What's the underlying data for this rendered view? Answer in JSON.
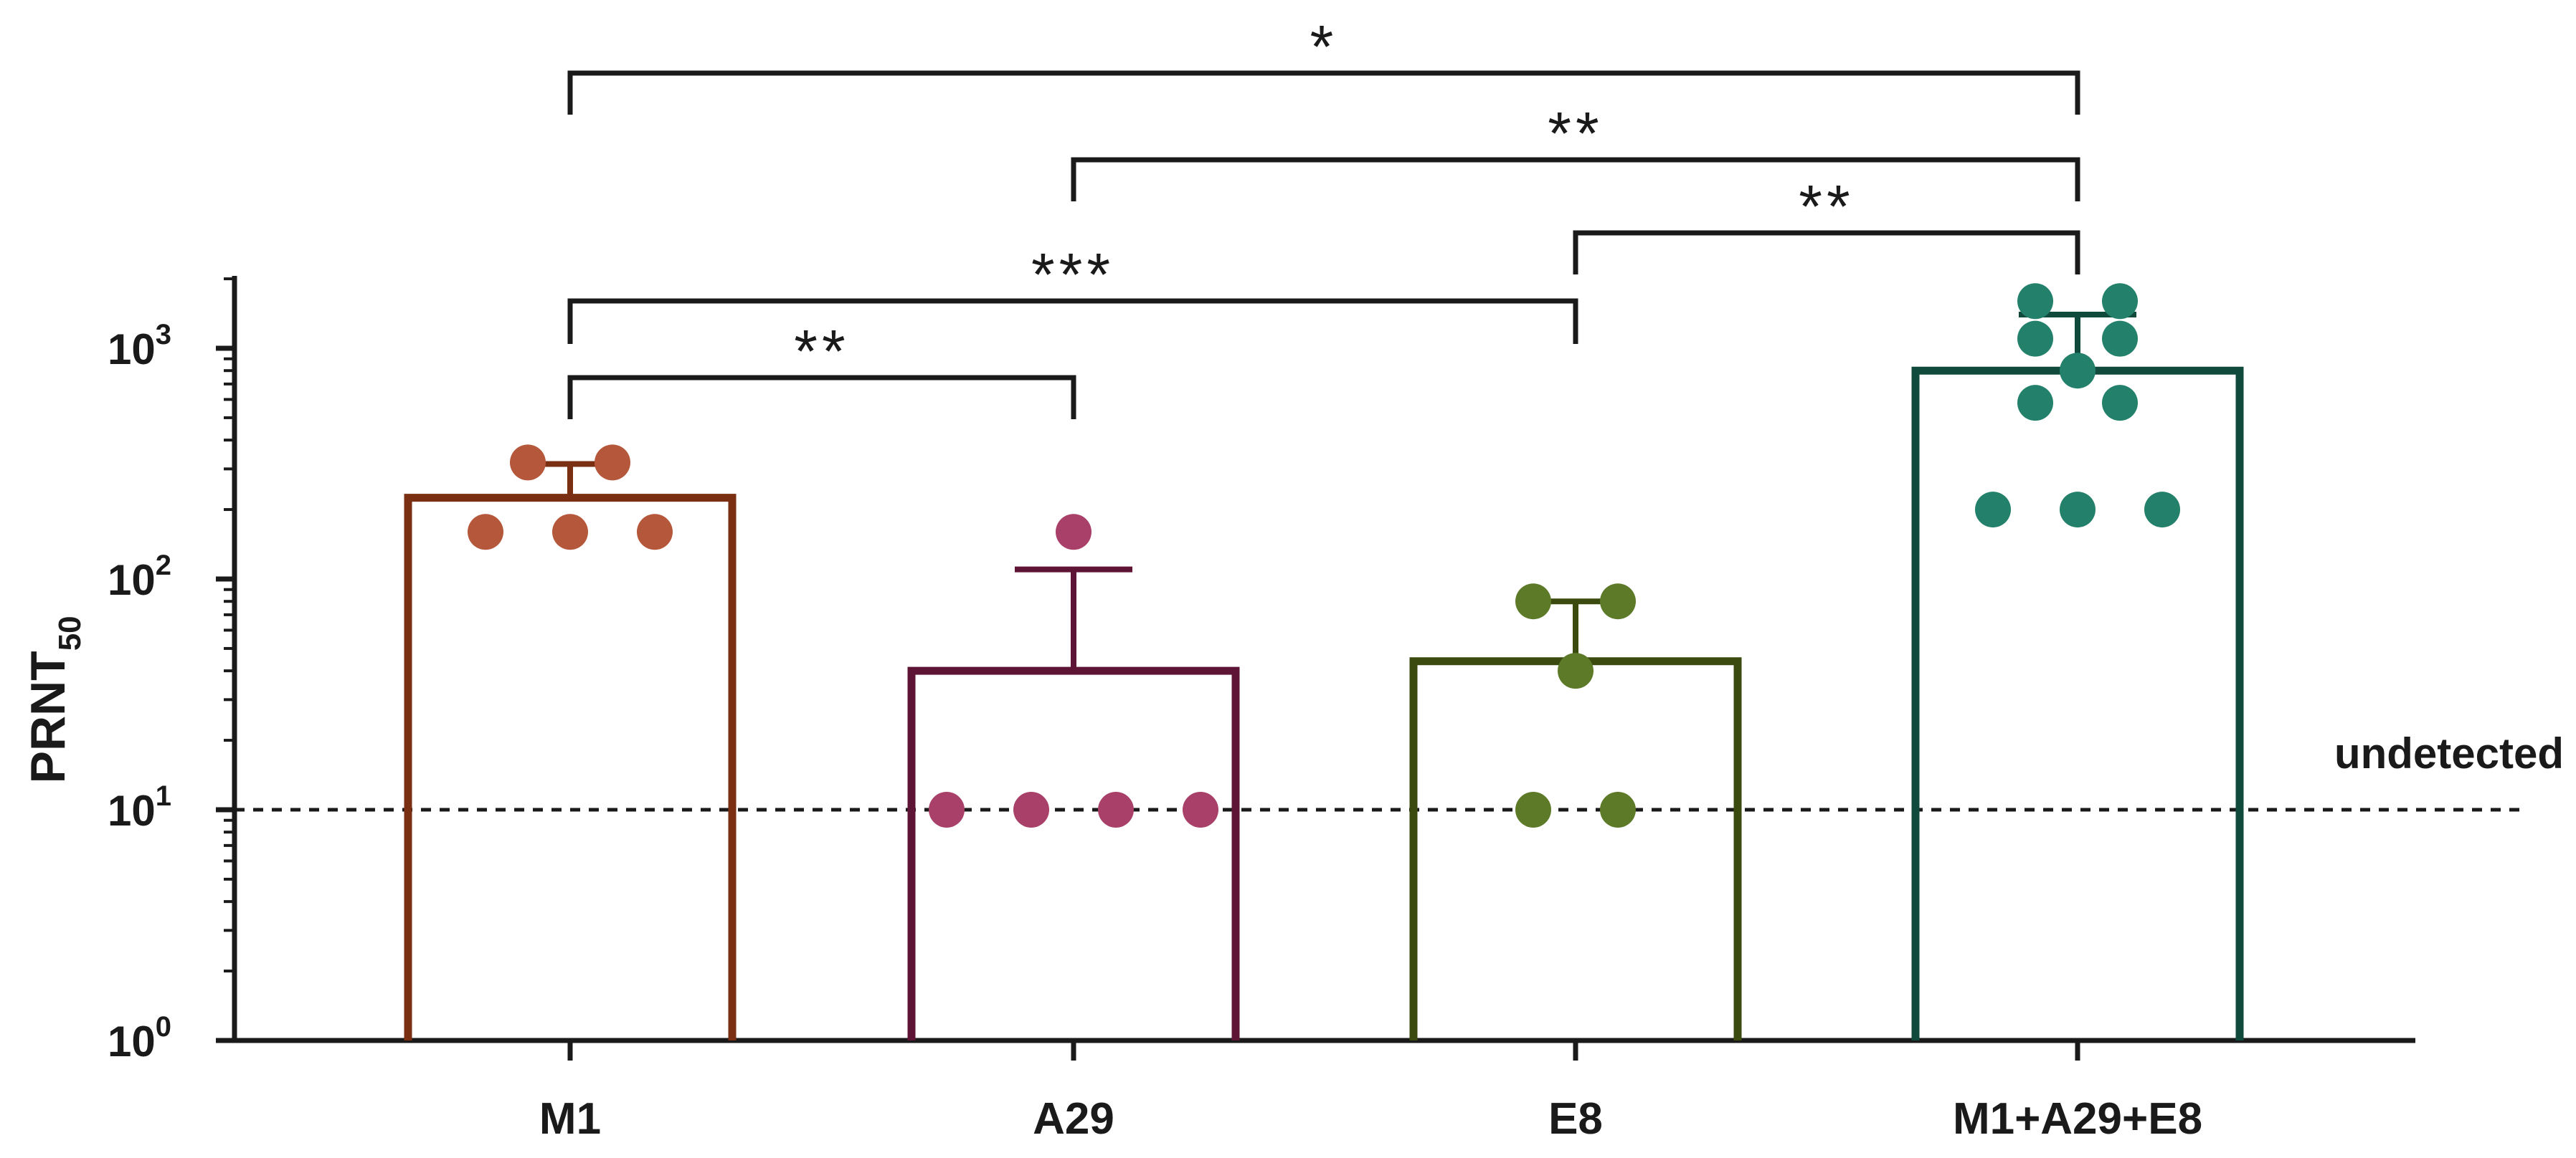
{
  "chart_data": {
    "type": "bar",
    "y_scale": "log",
    "ylabel": "PRNT",
    "ylabel_subscript": "50",
    "ylim": [
      1,
      2000
    ],
    "y_ticks": [
      {
        "value": 1,
        "base": "10",
        "exp": "0"
      },
      {
        "value": 10,
        "base": "10",
        "exp": "1"
      },
      {
        "value": 100,
        "base": "10",
        "exp": "2"
      },
      {
        "value": 1000,
        "base": "10",
        "exp": "3"
      }
    ],
    "categories": [
      "M1",
      "A29",
      "E8",
      "M1+A29+E8"
    ],
    "bars": [
      {
        "name": "M1",
        "mean": 225,
        "error_upper": 315,
        "color": "#7a2e12",
        "point_color": "#b5573a",
        "points": [
          320,
          320,
          160,
          160,
          160
        ]
      },
      {
        "name": "A29",
        "mean": 40,
        "error_upper": 110,
        "color": "#5e1535",
        "point_color": "#a8406a",
        "points": [
          160,
          10,
          10,
          10,
          10
        ]
      },
      {
        "name": "E8",
        "mean": 44,
        "error_upper": 80,
        "color": "#3b4a0e",
        "point_color": "#5d7a28",
        "points": [
          80,
          80,
          40,
          10,
          10
        ]
      },
      {
        "name": "M1+A29+E8",
        "mean": 800,
        "error_upper": 1400,
        "color": "#0f4a3c",
        "point_color": "#23806a",
        "points": [
          1600,
          1600,
          1100,
          1100,
          800,
          580,
          580,
          200,
          200,
          200
        ]
      }
    ],
    "reference_line": {
      "value": 10,
      "label": "undetected",
      "style": "dashed"
    },
    "significance": [
      {
        "from": "M1",
        "to": "M1+A29+E8",
        "label": "*"
      },
      {
        "from": "A29",
        "to": "M1+A29+E8",
        "label": "**"
      },
      {
        "from": "E8",
        "to": "M1+A29+E8",
        "label": "**"
      },
      {
        "from": "M1",
        "to": "E8",
        "label": "***"
      },
      {
        "from": "M1",
        "to": "A29",
        "label": "**"
      }
    ]
  }
}
